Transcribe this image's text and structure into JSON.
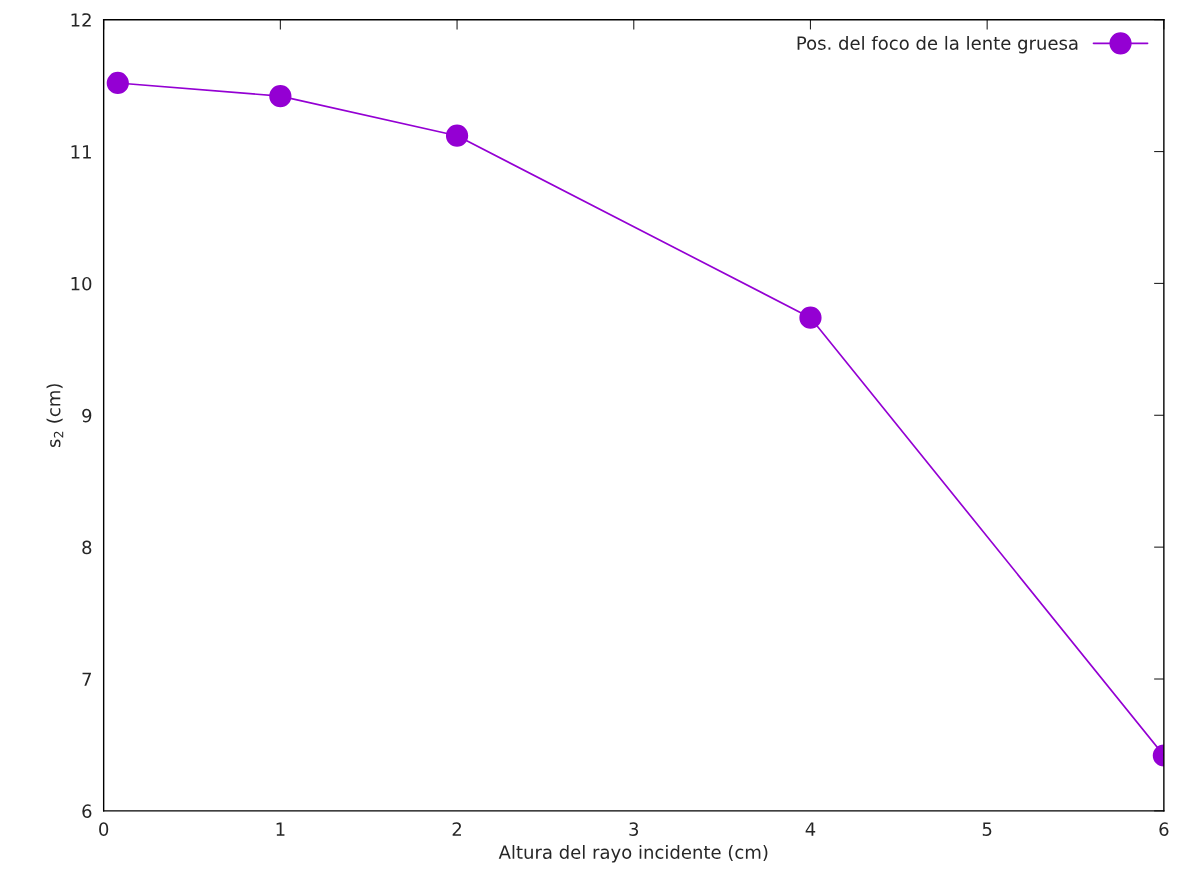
{
  "chart_data": {
    "type": "line",
    "xlabel": "Altura del rayo incidente (cm)",
    "ylabel": "s$_{2}$ (cm)",
    "x": [
      0.08,
      1,
      2,
      4,
      6
    ],
    "series": [
      {
        "name": "Pos. del foco de la lente gruesa",
        "color": "#9400d3",
        "values": [
          11.52,
          11.42,
          11.12,
          9.74,
          6.42
        ]
      }
    ],
    "xlim": [
      0,
      6
    ],
    "xticks": [
      0,
      1,
      2,
      3,
      4,
      5,
      6
    ],
    "ylim": [
      6,
      12
    ],
    "yticks": [
      6,
      7,
      8,
      9,
      10,
      11,
      12
    ],
    "marker": "circle",
    "line_style": "solid",
    "legend": "top right",
    "grid": false
  }
}
